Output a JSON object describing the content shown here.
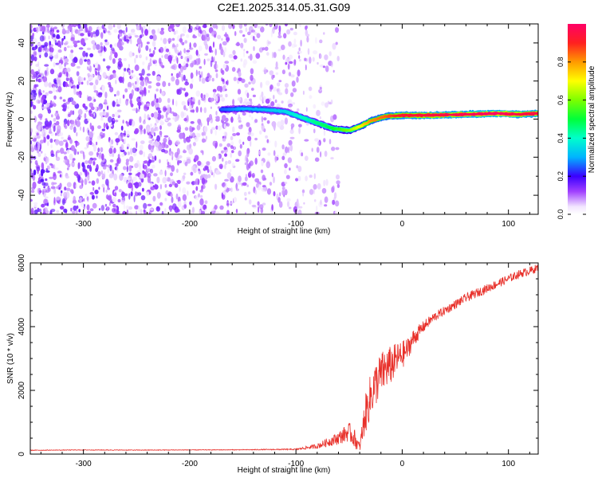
{
  "title": "C2E1.2025.314.05.31.G09",
  "chart_data": [
    {
      "type": "heatmap",
      "xlabel": "Height of straight line (km)",
      "ylabel": "Frequency (Hz)",
      "xlim": [
        -350,
        128
      ],
      "ylim": [
        -50,
        50
      ],
      "xticks": [
        -300,
        -200,
        -100,
        0,
        100
      ],
      "yticks": [
        -40,
        -20,
        0,
        20,
        40
      ],
      "colorbar": {
        "label": "Normalized spectral amplitude",
        "range": [
          0,
          1
        ],
        "ticks": [
          0.0,
          0.2,
          0.4,
          0.6,
          0.8
        ],
        "tick_labels": [
          "0.0",
          "0.2",
          "0.4",
          "0.6",
          "0.8"
        ]
      },
      "noise_region": {
        "x_start": -350,
        "x_end": -60,
        "amplitude_range": [
          0.0,
          0.15
        ]
      },
      "ridge": [
        {
          "x": -170,
          "freq": 5.0,
          "amp": 0.25
        },
        {
          "x": -150,
          "freq": 5.5,
          "amp": 0.3
        },
        {
          "x": -130,
          "freq": 5.0,
          "amp": 0.32
        },
        {
          "x": -110,
          "freq": 4.0,
          "amp": 0.35
        },
        {
          "x": -95,
          "freq": 1.0,
          "amp": 0.4
        },
        {
          "x": -80,
          "freq": -2.0,
          "amp": 0.45
        },
        {
          "x": -65,
          "freq": -5.0,
          "amp": 0.5
        },
        {
          "x": -50,
          "freq": -6.0,
          "amp": 0.6
        },
        {
          "x": -40,
          "freq": -4.0,
          "amp": 0.7
        },
        {
          "x": -30,
          "freq": -1.0,
          "amp": 0.8
        },
        {
          "x": -15,
          "freq": 1.5,
          "amp": 0.85
        },
        {
          "x": 0,
          "freq": 2.0,
          "amp": 0.92
        },
        {
          "x": 30,
          "freq": 2.0,
          "amp": 0.95
        },
        {
          "x": 60,
          "freq": 2.5,
          "amp": 0.97
        },
        {
          "x": 90,
          "freq": 3.0,
          "amp": 1.0
        },
        {
          "x": 110,
          "freq": 2.5,
          "amp": 0.95
        },
        {
          "x": 128,
          "freq": 3.0,
          "amp": 0.95
        }
      ]
    },
    {
      "type": "line",
      "xlabel": "Height of straight line (km)",
      "ylabel": "SNR (10 * v/v)",
      "xlim": [
        -350,
        128
      ],
      "ylim": [
        0,
        6000
      ],
      "xticks": [
        -300,
        -200,
        -100,
        0,
        100
      ],
      "yticks": [
        0,
        2000,
        4000,
        6000
      ],
      "series": [
        {
          "name": "SNR",
          "color": "#e8302a",
          "x": [
            -350,
            -300,
            -250,
            -200,
            -150,
            -100,
            -80,
            -60,
            -50,
            -45,
            -40,
            -35,
            -30,
            -25,
            -20,
            -15,
            -10,
            -5,
            0,
            5,
            10,
            20,
            30,
            40,
            50,
            60,
            70,
            80,
            90,
            100,
            110,
            120,
            128
          ],
          "y": [
            120,
            130,
            125,
            130,
            135,
            150,
            250,
            500,
            700,
            500,
            200,
            1200,
            1800,
            2200,
            2500,
            2700,
            2800,
            3000,
            3100,
            3300,
            3600,
            4000,
            4300,
            4500,
            4700,
            4900,
            5050,
            5200,
            5350,
            5500,
            5650,
            5750,
            5850
          ],
          "noise": [
            10,
            10,
            10,
            10,
            10,
            20,
            80,
            200,
            300,
            300,
            150,
            600,
            700,
            700,
            700,
            650,
            600,
            500,
            450,
            350,
            300,
            180,
            150,
            140,
            140,
            140,
            140,
            140,
            140,
            130,
            130,
            130,
            130
          ]
        }
      ]
    }
  ]
}
